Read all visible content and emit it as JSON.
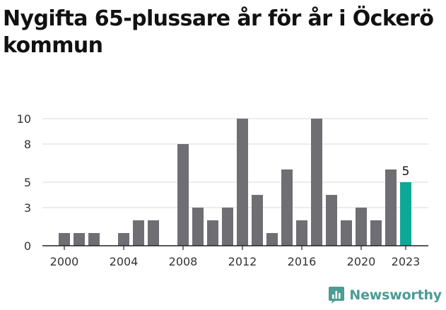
{
  "title": "Nygifta 65-plussare år för år i Öckerö kommun",
  "brand": {
    "name": "Newsworthy",
    "color": "#4a9c94",
    "icon": "bar-chart-icon"
  },
  "colors": {
    "bar": "#6f6e73",
    "highlight": "#0ea899",
    "grid": "#d9d9d9",
    "axis": "#222222"
  },
  "chart_data": {
    "type": "bar",
    "title": "Nygifta 65-plussare år för år i Öckerö kommun",
    "xlabel": "",
    "ylabel": "",
    "categories": [
      2000,
      2001,
      2002,
      2003,
      2004,
      2005,
      2006,
      2007,
      2008,
      2009,
      2010,
      2011,
      2012,
      2013,
      2014,
      2015,
      2016,
      2017,
      2018,
      2019,
      2020,
      2021,
      2022,
      2023
    ],
    "values": [
      1,
      1,
      1,
      0,
      1,
      2,
      2,
      0,
      8,
      3,
      2,
      3,
      10,
      4,
      1,
      6,
      2,
      10,
      4,
      2,
      3,
      2,
      6,
      5
    ],
    "highlight_index": 23,
    "highlight_label": "5",
    "ylim": [
      0,
      10
    ],
    "y_ticks": [
      0,
      3,
      5,
      8,
      10
    ],
    "x_tick_labels": [
      "2000",
      "2004",
      "2008",
      "2012",
      "2016",
      "2020",
      "2023"
    ],
    "x_tick_values": [
      2000,
      2004,
      2008,
      2012,
      2016,
      2020,
      2023
    ],
    "grid": true,
    "legend": "none"
  }
}
